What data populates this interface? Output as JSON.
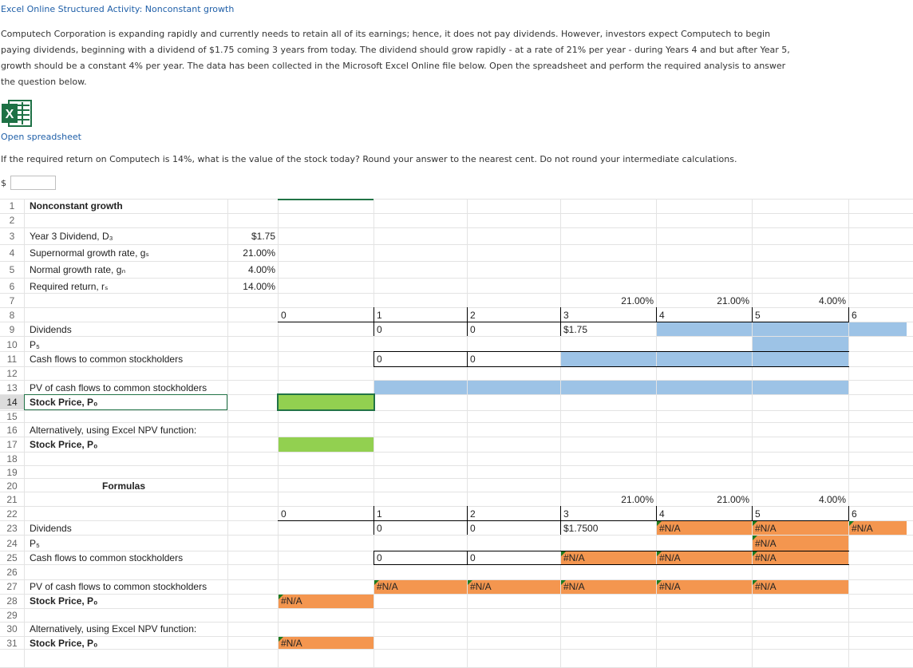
{
  "title": "Excel Online Structured Activity: Nonconstant growth",
  "intro": "Computech Corporation is expanding rapidly and currently needs to retain all of its earnings; hence, it does not pay dividends. However, investors expect Computech to begin paying dividends, beginning with a dividend of $1.75 coming 3 years from today. The dividend should grow rapidly - at a rate of 21% per year - during Years 4 and but after Year 5, growth should be a constant 4% per year. The data has been collected in the Microsoft Excel Online file below. Open the spreadsheet and perform the required analysis to answer the question below.",
  "icon": "excel-icon",
  "open_link": "Open spreadsheet",
  "question": "If the required return on Computech is 14%, what is the value of the stock today? Round your answer to the nearest cent. Do not round your intermediate calculations.",
  "answer": {
    "prefix": "$",
    "value": ""
  },
  "sheet": {
    "row_numbers": [
      "1",
      "2",
      "3",
      "4",
      "5",
      "6",
      "7",
      "8",
      "9",
      "10",
      "11",
      "12",
      "13",
      "14",
      "15",
      "16",
      "17",
      "18",
      "19",
      "20",
      "21",
      "22",
      "23",
      "24",
      "25",
      "26",
      "27",
      "28",
      "29",
      "30",
      "31"
    ],
    "title": "Nonconstant growth",
    "inputs": {
      "d3_label": "Year 3 Dividend, D₃",
      "d3_value": "$1.75",
      "gs_label": "Supernormal growth rate, gₛ",
      "gs_value": "21.00%",
      "gn_label": "Normal growth rate, gₙ",
      "gn_value": "4.00%",
      "rs_label": "Required return, rₛ",
      "rs_value": "14.00%"
    },
    "labels": {
      "dividends": "Dividends",
      "p5": "P₅",
      "cash_flows": "Cash flows to common stockholders",
      "pv_cash_flows": "PV of cash flows to common stockholders",
      "stock_price": "Stock Price, P₀",
      "alt_npv": "Alternatively, using Excel NPV function:",
      "formulas": "Formulas"
    },
    "growth_rates": [
      "21.00%",
      "21.00%",
      "4.00%"
    ],
    "years": [
      "0",
      "1",
      "2",
      "3",
      "4",
      "5",
      "6"
    ],
    "top": {
      "div1": "0",
      "div2": "0",
      "div3": "$1.75",
      "cf1": "0",
      "cf2": "0"
    },
    "bottom": {
      "div1": "0",
      "div2": "0",
      "div3": "$1.7500",
      "div4": "#N/A",
      "div5": "#N/A",
      "div6": "#N/A",
      "p5": "#N/A",
      "cf1": "0",
      "cf2": "0",
      "cf3": "#N/A",
      "cf4": "#N/A",
      "cf5": "#N/A",
      "pv1": "#N/A",
      "pv2": "#N/A",
      "pv3": "#N/A",
      "pv4": "#N/A",
      "pv5": "#N/A",
      "stock_price": "#N/A",
      "npv_price": "#N/A"
    }
  }
}
